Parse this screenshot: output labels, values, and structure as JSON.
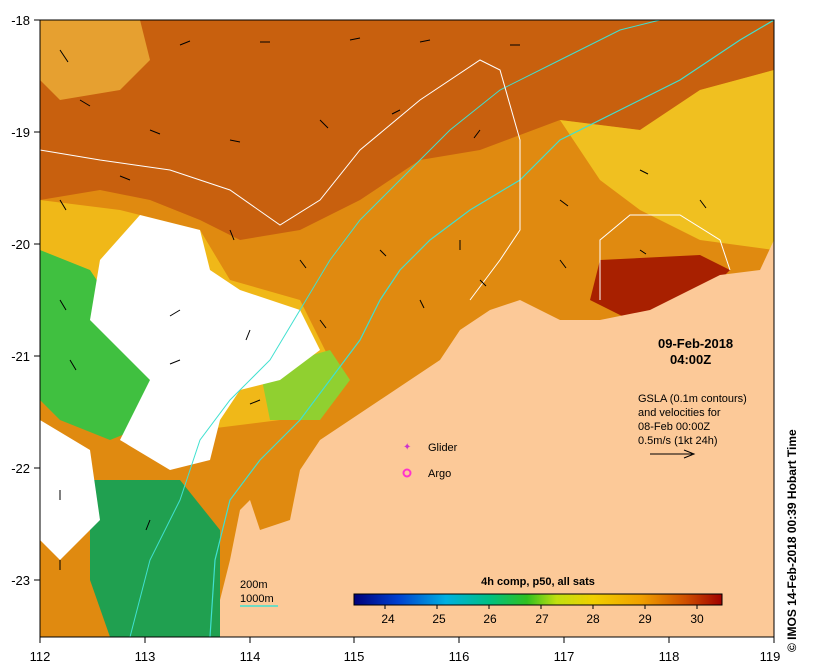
{
  "map": {
    "date": "09-Feb-2018",
    "time": "04:00Z",
    "gsla_note": [
      "GSLA (0.1m contours)",
      "and velocities for",
      "08-Feb 00:00Z",
      "0.5m/s (1kt 24h)"
    ],
    "legend": [
      {
        "label": "Glider",
        "color": "#cc33cc"
      },
      {
        "label": "Argo",
        "color": "#ff33cc"
      }
    ],
    "bathymetry": [
      {
        "label": "200m",
        "color": "#40e0d0"
      },
      {
        "label": "1000m",
        "color": "#40e0d0"
      }
    ],
    "x_ticks": [
      "112",
      "113",
      "114",
      "115",
      "116",
      "117",
      "118",
      "119"
    ],
    "y_ticks": [
      "-18",
      "-19",
      "-20",
      "-21",
      "-22",
      "-23"
    ],
    "colorbar": {
      "title": "4h comp, p50, all sats",
      "ticks": [
        "24",
        "25",
        "26",
        "27",
        "28",
        "29",
        "30"
      ]
    },
    "credit": "© IMOS 14-Feb-2018 00:39 Hobart Time",
    "colors": {
      "land": "#fcc998",
      "sst_warm": "#d06010",
      "sst_orange": "#e88a10",
      "sst_yellow": "#f0c010",
      "sst_green": "#20a040"
    }
  }
}
